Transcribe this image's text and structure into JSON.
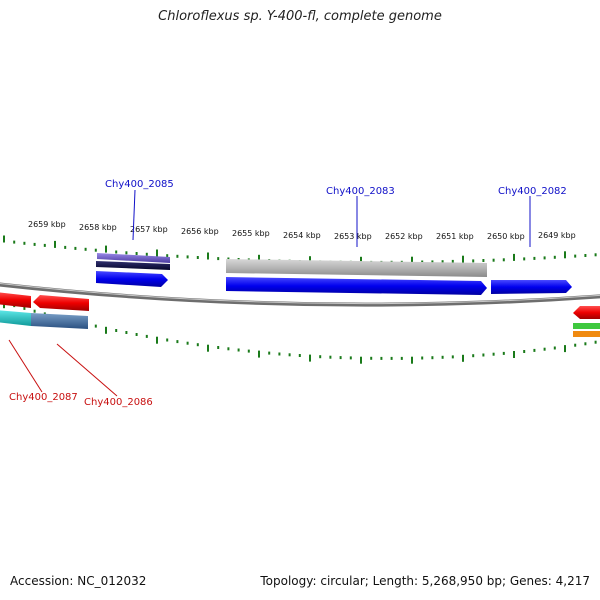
{
  "title": "Chloroflexus sp. Y-400-fl, complete genome",
  "footer": {
    "accession": "Accession: NC_012032",
    "summary": "Topology: circular; Length: 5,268,950 bp; Genes: 4,217"
  },
  "scale_labels": [
    "2659 kbp",
    "2658 kbp",
    "2657 kbp",
    "2656 kbp",
    "2655 kbp",
    "2654 kbp",
    "2653 kbp",
    "2652 kbp",
    "2651 kbp",
    "2650 kbp",
    "2649 kbp"
  ],
  "gene_labels": {
    "chy2085": "Chy400_2085",
    "chy2083": "Chy400_2083",
    "chy2082": "Chy400_2082",
    "chy2087": "Chy400_2087",
    "chy2086": "Chy400_2086"
  },
  "colors": {
    "forward_cds": "#0a0ae6",
    "reverse_cds": "#e60a0a",
    "label_forward": "#1010c8",
    "label_reverse": "#c81010",
    "tick": "#1a7a1a",
    "backbone": "#777777",
    "rna_like": "#b0b0b0",
    "purple_feature": "#6a5acd",
    "navy_feature": "#101040",
    "cyan_feature": "#1ec8c8",
    "steel_feature": "#4a78a8"
  }
}
